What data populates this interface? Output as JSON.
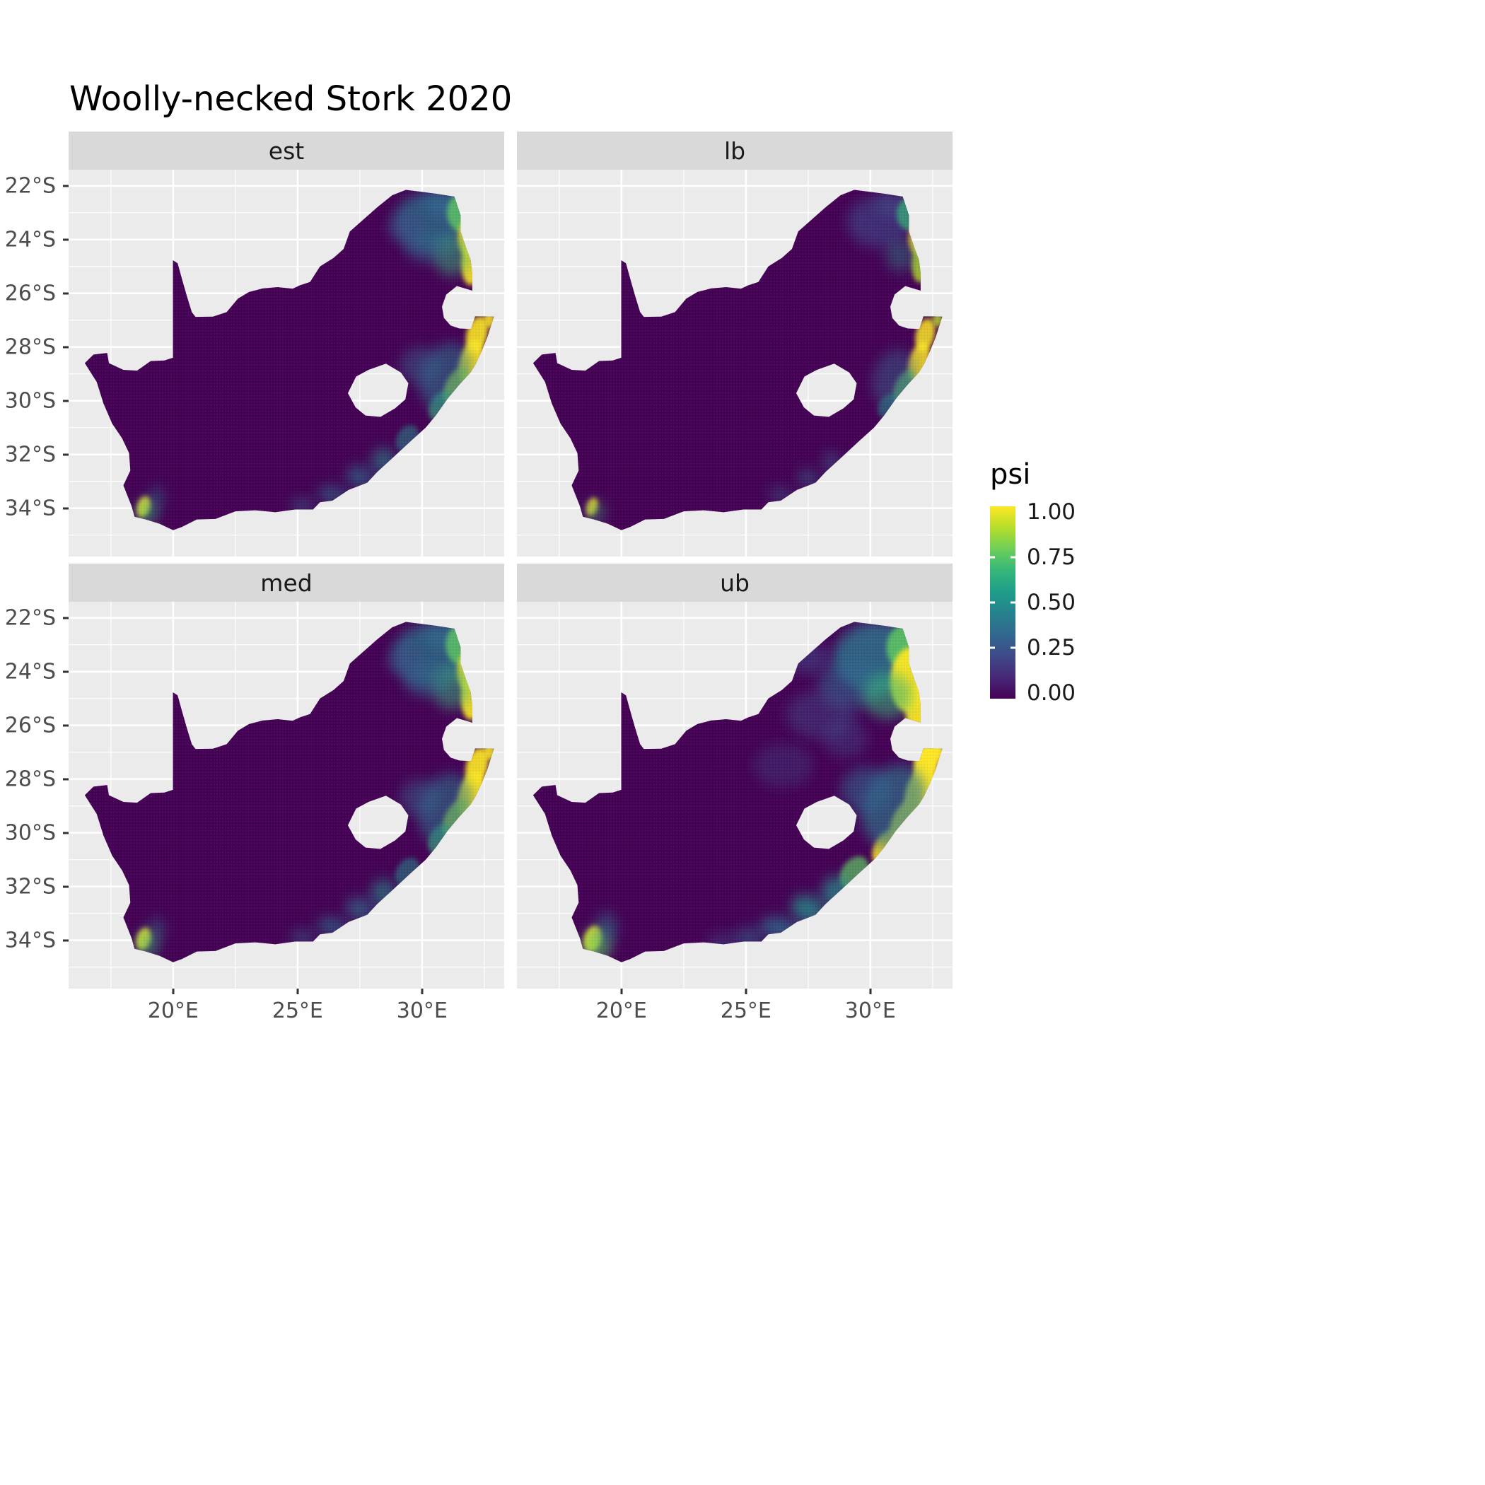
{
  "chart_data": {
    "type": "heatmap",
    "title": "Woolly-necked Stork 2020",
    "description": "Faceted occupancy-probability (psi) raster maps of South Africa. Facets: est (estimate), lb (lower bound), med (median), ub (upper bound). Most of the country is near psi = 0 (dark purple); high psi (green/yellow) occurs along the KwaZulu-Natal east coast, the north-eastern lowveld (Kruger/Limpopo), patches of the southern coast, and a small area near Cape Town. Lesotho is blank (no data). The ub facet shows the largest/brightest high-psi areas, lb the smallest.",
    "facet_variable_values": [
      "est",
      "lb",
      "med",
      "ub"
    ],
    "x_axis": {
      "label": "",
      "tick_labels": [
        "20°E",
        "25°E",
        "30°E"
      ],
      "tick_values": [
        20,
        25,
        30
      ],
      "range": [
        15.8,
        33.3
      ],
      "unit": "degrees east longitude"
    },
    "y_axis": {
      "label": "",
      "tick_labels": [
        "22°S",
        "24°S",
        "26°S",
        "28°S",
        "30°S",
        "32°S",
        "34°S"
      ],
      "tick_values": [
        22,
        24,
        26,
        28,
        30,
        32,
        34
      ],
      "range": [
        21.4,
        35.8
      ],
      "unit": "degrees south latitude"
    },
    "legend": {
      "title": "psi",
      "tick_labels": [
        "1.00",
        "0.75",
        "0.50",
        "0.25",
        "0.00"
      ],
      "tick_values": [
        1,
        0.75,
        0.5,
        0.25,
        0
      ],
      "range": [
        0,
        1
      ],
      "colors": [
        "#440154",
        "#482878",
        "#3e4a89",
        "#31688e",
        "#26828e",
        "#1f9e89",
        "#35b779",
        "#6ece58",
        "#b5de2b",
        "#fde725"
      ],
      "position": "right"
    },
    "grid": true,
    "hotspot_format": [
      "lon_e",
      "lat_s",
      "rx_deg",
      "ry_deg",
      "rotation_deg",
      "viridis_color",
      "opacity",
      "blur"
    ],
    "facets": [
      {
        "label": "est",
        "hotspots": [
          [
            30.35,
            23.35,
            1.5,
            1.1,
            0,
            "#2a788e",
            0.7,
            "md"
          ],
          [
            30.9,
            22.65,
            0.8,
            0.5,
            0,
            "#31688e",
            0.7,
            "md"
          ],
          [
            31.55,
            23.0,
            0.55,
            0.7,
            0,
            "#5ec962",
            0.8,
            "sm"
          ],
          [
            31.85,
            23.9,
            0.42,
            0.7,
            5,
            "#fde725",
            0.85,
            "sm"
          ],
          [
            31.95,
            24.9,
            0.38,
            0.8,
            0,
            "#fde725",
            0.9,
            "sm"
          ],
          [
            31.2,
            24.6,
            0.75,
            0.75,
            0,
            "#35b779",
            0.5,
            "md"
          ],
          [
            30.2,
            24.3,
            0.9,
            0.55,
            0,
            "#31688e",
            0.5,
            "md"
          ],
          [
            29.3,
            23.6,
            0.7,
            0.5,
            0,
            "#3e4a89",
            0.5,
            "md"
          ],
          [
            32.7,
            27.0,
            0.25,
            0.3,
            0,
            "#fde725",
            0.85,
            "sm"
          ],
          [
            32.2,
            27.55,
            0.42,
            0.7,
            15,
            "#fde725",
            0.9,
            "sm"
          ],
          [
            31.95,
            28.55,
            0.45,
            0.85,
            18,
            "#fde725",
            0.92,
            "sm"
          ],
          [
            31.35,
            29.45,
            0.4,
            0.75,
            30,
            "#b5de2b",
            0.8,
            "sm"
          ],
          [
            30.75,
            30.2,
            0.42,
            0.6,
            35,
            "#35b779",
            0.6,
            "sm"
          ],
          [
            30.95,
            29.1,
            1.0,
            1.3,
            25,
            "#2a788e",
            0.55,
            "md"
          ],
          [
            29.9,
            28.7,
            0.8,
            0.7,
            0,
            "#31688e",
            0.45,
            "md"
          ],
          [
            29.4,
            31.4,
            0.4,
            0.55,
            40,
            "#21918c",
            0.5,
            "sm"
          ],
          [
            28.45,
            32.25,
            0.5,
            0.5,
            35,
            "#21918c",
            0.55,
            "md"
          ],
          [
            27.5,
            32.85,
            0.55,
            0.4,
            20,
            "#2a788e",
            0.6,
            "md"
          ],
          [
            26.4,
            33.5,
            0.6,
            0.33,
            10,
            "#2a788e",
            0.55,
            "md"
          ],
          [
            25.2,
            33.9,
            0.5,
            0.3,
            0,
            "#31688e",
            0.45,
            "md"
          ],
          [
            18.82,
            33.95,
            0.26,
            0.4,
            20,
            "#fde725",
            0.9,
            "sm"
          ],
          [
            18.95,
            34.15,
            0.45,
            0.5,
            0,
            "#35b779",
            0.5,
            "md"
          ],
          [
            19.35,
            33.6,
            0.3,
            0.45,
            0,
            "#2a788e",
            0.4,
            "md"
          ]
        ]
      },
      {
        "label": "lb",
        "hotspots": [
          [
            30.35,
            23.35,
            1.3,
            0.95,
            0,
            "#3e4a89",
            0.6,
            "md"
          ],
          [
            30.9,
            22.65,
            0.7,
            0.45,
            0,
            "#3e4a89",
            0.55,
            "md"
          ],
          [
            31.55,
            23.05,
            0.5,
            0.6,
            0,
            "#35b779",
            0.7,
            "sm"
          ],
          [
            31.88,
            23.95,
            0.36,
            0.6,
            5,
            "#fde725",
            0.75,
            "sm"
          ],
          [
            31.97,
            24.9,
            0.32,
            0.7,
            0,
            "#b5de2b",
            0.8,
            "sm"
          ],
          [
            31.2,
            24.6,
            0.6,
            0.6,
            0,
            "#21918c",
            0.4,
            "md"
          ],
          [
            32.7,
            27.0,
            0.22,
            0.26,
            0,
            "#b5de2b",
            0.8,
            "sm"
          ],
          [
            32.2,
            27.55,
            0.38,
            0.62,
            15,
            "#fde725",
            0.85,
            "sm"
          ],
          [
            31.95,
            28.55,
            0.4,
            0.75,
            18,
            "#fde725",
            0.85,
            "sm"
          ],
          [
            31.35,
            29.45,
            0.35,
            0.65,
            30,
            "#5ec962",
            0.7,
            "sm"
          ],
          [
            30.95,
            29.15,
            0.85,
            1.1,
            25,
            "#31688e",
            0.45,
            "md"
          ],
          [
            30.7,
            30.2,
            0.35,
            0.5,
            35,
            "#21918c",
            0.5,
            "sm"
          ],
          [
            28.45,
            32.3,
            0.4,
            0.4,
            35,
            "#31688e",
            0.45,
            "md"
          ],
          [
            27.5,
            32.9,
            0.45,
            0.33,
            20,
            "#31688e",
            0.5,
            "md"
          ],
          [
            26.4,
            33.5,
            0.5,
            0.28,
            10,
            "#31688e",
            0.45,
            "md"
          ],
          [
            18.82,
            33.95,
            0.22,
            0.35,
            20,
            "#fde725",
            0.8,
            "sm"
          ],
          [
            18.95,
            34.15,
            0.4,
            0.45,
            0,
            "#35b779",
            0.4,
            "md"
          ]
        ]
      },
      {
        "label": "med",
        "hotspots": [
          [
            30.35,
            23.4,
            1.55,
            1.15,
            0,
            "#2a788e",
            0.72,
            "md"
          ],
          [
            30.9,
            22.65,
            0.8,
            0.5,
            0,
            "#31688e",
            0.7,
            "md"
          ],
          [
            31.55,
            23.0,
            0.6,
            0.75,
            0,
            "#5ec962",
            0.8,
            "sm"
          ],
          [
            31.85,
            23.95,
            0.45,
            0.75,
            5,
            "#fde725",
            0.88,
            "sm"
          ],
          [
            31.95,
            24.95,
            0.4,
            0.85,
            0,
            "#fde725",
            0.92,
            "sm"
          ],
          [
            31.2,
            24.6,
            0.8,
            0.8,
            0,
            "#35b779",
            0.5,
            "md"
          ],
          [
            30.2,
            24.35,
            0.95,
            0.6,
            0,
            "#31688e",
            0.5,
            "md"
          ],
          [
            29.3,
            23.6,
            0.7,
            0.5,
            0,
            "#3e4a89",
            0.5,
            "md"
          ],
          [
            32.7,
            27.0,
            0.26,
            0.3,
            0,
            "#fde725",
            0.88,
            "sm"
          ],
          [
            32.2,
            27.55,
            0.44,
            0.72,
            15,
            "#fde725",
            0.92,
            "sm"
          ],
          [
            31.95,
            28.55,
            0.48,
            0.88,
            18,
            "#fde725",
            0.95,
            "sm"
          ],
          [
            31.35,
            29.45,
            0.42,
            0.78,
            30,
            "#b5de2b",
            0.82,
            "sm"
          ],
          [
            30.75,
            30.25,
            0.45,
            0.62,
            35,
            "#35b779",
            0.62,
            "sm"
          ],
          [
            30.95,
            29.1,
            1.05,
            1.35,
            25,
            "#2a788e",
            0.55,
            "md"
          ],
          [
            29.9,
            28.7,
            0.8,
            0.7,
            0,
            "#31688e",
            0.45,
            "md"
          ],
          [
            29.4,
            31.45,
            0.42,
            0.58,
            40,
            "#21918c",
            0.52,
            "sm"
          ],
          [
            28.45,
            32.25,
            0.52,
            0.52,
            35,
            "#21918c",
            0.58,
            "md"
          ],
          [
            27.5,
            32.85,
            0.58,
            0.42,
            20,
            "#2a788e",
            0.62,
            "md"
          ],
          [
            26.4,
            33.5,
            0.62,
            0.35,
            10,
            "#2a788e",
            0.58,
            "md"
          ],
          [
            25.2,
            33.9,
            0.52,
            0.3,
            0,
            "#31688e",
            0.48,
            "md"
          ],
          [
            18.82,
            33.95,
            0.28,
            0.42,
            20,
            "#fde725",
            0.92,
            "sm"
          ],
          [
            18.95,
            34.15,
            0.48,
            0.52,
            0,
            "#35b779",
            0.52,
            "md"
          ],
          [
            19.35,
            33.6,
            0.32,
            0.47,
            0,
            "#2a788e",
            0.42,
            "md"
          ]
        ]
      },
      {
        "label": "ub",
        "hotspots": [
          [
            30.3,
            23.5,
            1.8,
            1.35,
            0,
            "#2a788e",
            0.8,
            "md"
          ],
          [
            29.2,
            24.5,
            1.3,
            0.9,
            0,
            "#31688e",
            0.55,
            "md"
          ],
          [
            28.0,
            25.6,
            1.4,
            0.9,
            0,
            "#3e4a89",
            0.45,
            "md"
          ],
          [
            27.5,
            23.5,
            0.9,
            0.6,
            0,
            "#3e4a89",
            0.5,
            "md"
          ],
          [
            31.4,
            23.1,
            0.75,
            0.85,
            0,
            "#5ec962",
            0.85,
            "sm"
          ],
          [
            31.55,
            24.3,
            0.75,
            1.2,
            5,
            "#fde725",
            0.95,
            "sm"
          ],
          [
            31.9,
            25.4,
            0.5,
            0.95,
            0,
            "#fde725",
            0.95,
            "sm"
          ],
          [
            30.7,
            24.9,
            1.0,
            0.85,
            0,
            "#35b779",
            0.55,
            "md"
          ],
          [
            32.7,
            27.0,
            0.28,
            0.32,
            0,
            "#fde725",
            0.95,
            "sm"
          ],
          [
            32.25,
            27.4,
            0.5,
            0.8,
            15,
            "#fde725",
            1,
            "sm"
          ],
          [
            32.0,
            28.5,
            0.58,
            1.0,
            18,
            "#fde725",
            1,
            "sm"
          ],
          [
            31.4,
            29.55,
            0.5,
            0.9,
            30,
            "#fde725",
            0.95,
            "sm"
          ],
          [
            30.65,
            30.55,
            0.48,
            0.75,
            35,
            "#fde725",
            0.85,
            "sm"
          ],
          [
            30.95,
            29.0,
            1.25,
            1.6,
            25,
            "#2a788e",
            0.65,
            "md"
          ],
          [
            29.8,
            28.4,
            1.0,
            0.85,
            0,
            "#31688e",
            0.55,
            "md"
          ],
          [
            29.35,
            31.5,
            0.5,
            0.7,
            40,
            "#5ec962",
            0.7,
            "sm"
          ],
          [
            28.6,
            32.2,
            0.55,
            0.6,
            35,
            "#21918c",
            0.7,
            "md"
          ],
          [
            27.5,
            32.85,
            0.7,
            0.5,
            20,
            "#21918c",
            0.75,
            "md"
          ],
          [
            26.35,
            33.55,
            0.8,
            0.4,
            10,
            "#2a788e",
            0.7,
            "md"
          ],
          [
            25.1,
            33.9,
            0.65,
            0.35,
            0,
            "#31688e",
            0.55,
            "md"
          ],
          [
            24.0,
            34.05,
            0.55,
            0.3,
            0,
            "#3e4a89",
            0.5,
            "md"
          ],
          [
            26.5,
            27.5,
            1.2,
            0.8,
            0,
            "#3e4a89",
            0.35,
            "md"
          ],
          [
            29.0,
            26.5,
            0.9,
            0.7,
            0,
            "#3e4a89",
            0.4,
            "md"
          ],
          [
            18.85,
            33.95,
            0.34,
            0.5,
            20,
            "#fde725",
            0.95,
            "sm"
          ],
          [
            19.0,
            34.2,
            0.6,
            0.6,
            0,
            "#5ec962",
            0.6,
            "md"
          ],
          [
            19.4,
            33.55,
            0.45,
            0.6,
            0,
            "#2a788e",
            0.5,
            "md"
          ]
        ]
      }
    ]
  }
}
